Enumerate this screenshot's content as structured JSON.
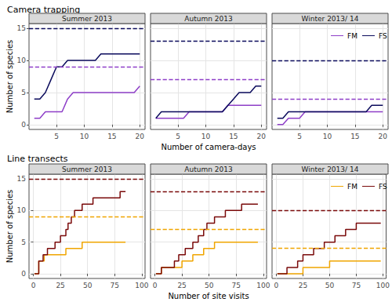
{
  "chart_data": [
    {
      "type": "line",
      "title": "Camera trapping",
      "x_label": "Number of camera-days",
      "y_label": "Number of species",
      "xlim": [
        0.05,
        20.95
      ],
      "xticks": [
        5,
        10,
        15,
        20
      ],
      "ylim": [
        -0.75,
        15.75
      ],
      "yticks": [
        0,
        5,
        10,
        15
      ],
      "grid": true,
      "legend": "top-right",
      "panels": [
        {
          "subtitle": "Summer 2013",
          "totals": {
            "FM": 9,
            "FS": 15
          },
          "series": [
            {
              "name": "FM",
              "color": "#8e3fc8",
              "x": [
                1,
                2,
                3,
                4,
                5,
                6,
                7,
                8,
                9,
                10,
                11,
                12,
                13,
                14,
                15,
                16,
                17,
                18,
                19,
                20
              ],
              "values": [
                1,
                1,
                2,
                2,
                2,
                2,
                4,
                5,
                5,
                5,
                5,
                5,
                5,
                5,
                5,
                5,
                5,
                5,
                5,
                6
              ]
            },
            {
              "name": "FS",
              "color": "#0b0b5c",
              "x": [
                1,
                2,
                3,
                4,
                5,
                6,
                7,
                8,
                9,
                10,
                11,
                12,
                13,
                14,
                15,
                16,
                17,
                18,
                19,
                20
              ],
              "values": [
                4,
                4,
                5,
                7,
                9,
                9,
                10,
                10,
                10,
                10,
                10,
                10,
                11,
                11,
                11,
                11,
                11,
                11,
                11,
                11
              ]
            }
          ]
        },
        {
          "subtitle": "Autumn 2013",
          "totals": {
            "FM": 7,
            "FS": 13
          },
          "series": [
            {
              "name": "FM",
              "color": "#8e3fc8",
              "x": [
                1,
                2,
                3,
                4,
                5,
                6,
                7,
                8,
                9,
                10,
                11,
                12,
                13,
                14,
                15,
                16,
                17,
                18,
                19,
                20
              ],
              "values": [
                1,
                1,
                1,
                1,
                1,
                1,
                2,
                2,
                2,
                2,
                2,
                2,
                2,
                3,
                3,
                3,
                3,
                3,
                3,
                3
              ]
            },
            {
              "name": "FS",
              "color": "#0b0b5c",
              "x": [
                1,
                2,
                3,
                4,
                5,
                6,
                7,
                8,
                9,
                10,
                11,
                12,
                13,
                14,
                15,
                16,
                17,
                18,
                19,
                20
              ],
              "values": [
                1,
                2,
                2,
                2,
                2,
                2,
                2,
                2,
                2,
                2,
                2,
                2,
                2,
                3,
                4,
                5,
                5,
                5,
                6,
                6
              ]
            }
          ]
        },
        {
          "subtitle": "Winter 2013/ 14",
          "totals": {
            "FM": 4,
            "FS": 10
          },
          "series": [
            {
              "name": "FM",
              "color": "#8e3fc8",
              "x": [
                1,
                2,
                3,
                4,
                5,
                6,
                7,
                8,
                9,
                10,
                11,
                12,
                13,
                14,
                15,
                16,
                17,
                18,
                19,
                20
              ],
              "values": [
                0,
                0,
                1,
                1,
                1,
                2,
                2,
                2,
                2,
                2,
                2,
                2,
                2,
                2,
                2,
                2,
                2,
                2,
                2,
                2
              ]
            },
            {
              "name": "FS",
              "color": "#0b0b5c",
              "x": [
                1,
                2,
                3,
                4,
                5,
                6,
                7,
                8,
                9,
                10,
                11,
                12,
                13,
                14,
                15,
                16,
                17,
                18,
                19,
                20
              ],
              "values": [
                1,
                1,
                2,
                2,
                2,
                2,
                2,
                2,
                2,
                2,
                2,
                2,
                2,
                2,
                2,
                2,
                2,
                3,
                3,
                3
              ]
            }
          ]
        }
      ]
    },
    {
      "type": "step",
      "title": "Line transects",
      "x_label": "Number of site visits",
      "y_label": "Number of species",
      "xlim": [
        -4,
        103
      ],
      "xticks": [
        0,
        25,
        50,
        75,
        100
      ],
      "ylim": [
        -0.75,
        15.75
      ],
      "yticks": [
        0,
        5,
        10,
        15
      ],
      "grid": true,
      "legend": "top-right",
      "panels": [
        {
          "subtitle": "Summer 2013",
          "totals": {
            "FM": 9,
            "FS": 15
          },
          "series": [
            {
              "name": "FM",
              "color": "#f0a500",
              "x": [
                1,
                5,
                10,
                30,
                45,
                85
              ],
              "values": [
                0,
                2,
                3,
                4,
                5,
                5
              ]
            },
            {
              "name": "FS",
              "color": "#7a0a0a",
              "x": [
                1,
                5,
                9,
                13,
                20,
                25,
                30,
                32,
                35,
                38,
                45,
                55,
                80,
                85
              ],
              "values": [
                0,
                2,
                3,
                4,
                5,
                6,
                7,
                8,
                9,
                10,
                11,
                12,
                13,
                13
              ]
            }
          ]
        },
        {
          "subtitle": "Autumn 2013",
          "totals": {
            "FM": 7,
            "FS": 13
          },
          "series": [
            {
              "name": "FM",
              "color": "#f0a500",
              "x": [
                1,
                6,
                25,
                35,
                45,
                55,
                95
              ],
              "values": [
                0,
                1,
                2,
                3,
                4,
                5,
                5
              ]
            },
            {
              "name": "FS",
              "color": "#7a0a0a",
              "x": [
                1,
                6,
                18,
                22,
                28,
                35,
                40,
                45,
                48,
                55,
                65,
                80,
                95
              ],
              "values": [
                0,
                1,
                2,
                3,
                4,
                5,
                6,
                7,
                8,
                9,
                10,
                11,
                11
              ]
            }
          ]
        },
        {
          "subtitle": "Winter 2013/ 14",
          "totals": {
            "FM": 4,
            "FS": 10
          },
          "series": [
            {
              "name": "FM",
              "color": "#f0a500",
              "x": [
                1,
                25,
                50,
                98
              ],
              "values": [
                0,
                1,
                2,
                2
              ]
            },
            {
              "name": "FS",
              "color": "#7a0a0a",
              "x": [
                1,
                10,
                20,
                25,
                35,
                45,
                55,
                65,
                75,
                98
              ],
              "values": [
                0,
                1,
                2,
                3,
                4,
                5,
                6,
                7,
                8,
                8
              ]
            }
          ]
        }
      ]
    }
  ]
}
